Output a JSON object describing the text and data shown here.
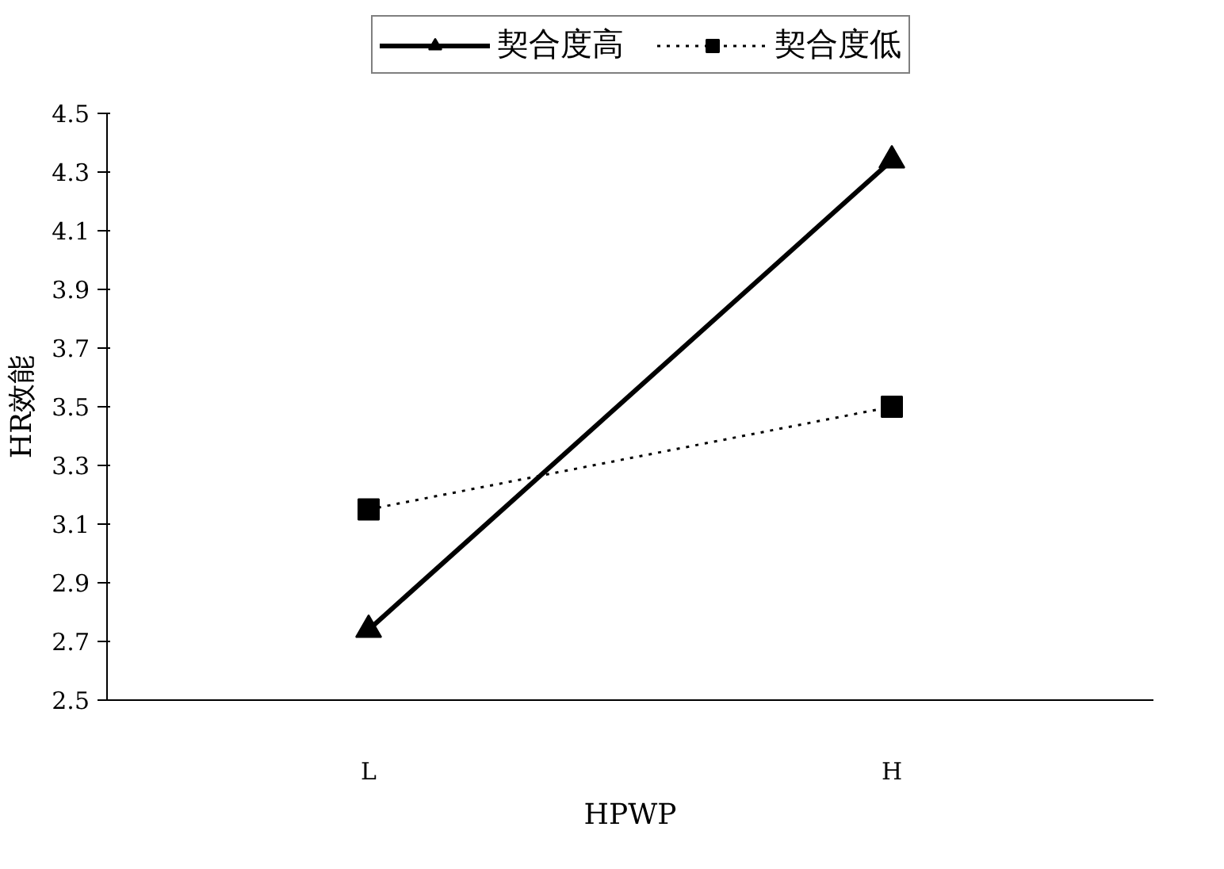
{
  "chart_data": {
    "type": "line",
    "xlabel": "HPWP",
    "ylabel": "HR效能",
    "categories": [
      "L",
      "H"
    ],
    "series": [
      {
        "name": "契合度高",
        "color": "#000000",
        "values": [
          2.74,
          4.34
        ],
        "marker": "triangle",
        "line_style": "solid"
      },
      {
        "name": "契合度低",
        "color": "#000000",
        "values": [
          3.15,
          3.5
        ],
        "marker": "square",
        "line_style": "dotted"
      }
    ],
    "ylim": [
      2.5,
      4.5
    ],
    "yticks": [
      2.5,
      2.7,
      2.9,
      3.1,
      3.3,
      3.5,
      3.7,
      3.9,
      4.1,
      4.3,
      4.5
    ],
    "grid": false,
    "legend": "top"
  }
}
